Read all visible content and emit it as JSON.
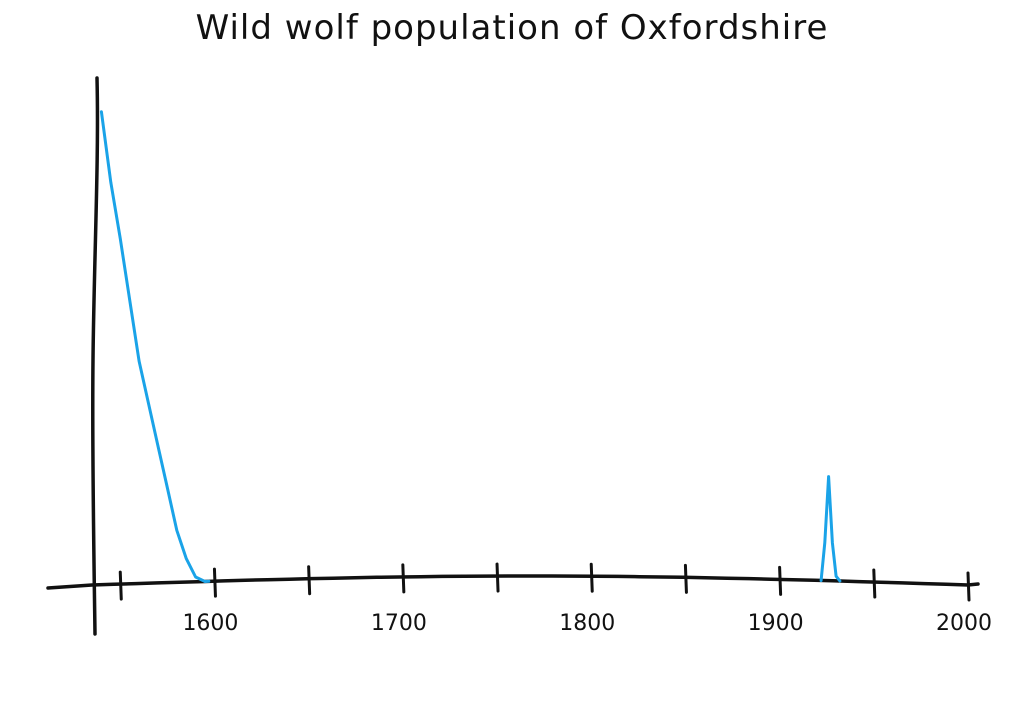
{
  "chart_data": {
    "type": "line",
    "title": "Wild wolf population of Oxfordshire",
    "xlabel": "",
    "ylabel": "",
    "xlim": [
      1535,
      2000
    ],
    "ylim": [
      0,
      100
    ],
    "x_ticks": [
      1550,
      1600,
      1650,
      1700,
      1750,
      1800,
      1850,
      1900,
      1950,
      2000
    ],
    "x_tick_labels": [
      {
        "x": 1600,
        "label": "1600"
      },
      {
        "x": 1700,
        "label": "1700"
      },
      {
        "x": 1800,
        "label": "1800"
      },
      {
        "x": 1900,
        "label": "1900"
      },
      {
        "x": 2000,
        "label": "2000"
      }
    ],
    "grid": false,
    "series": [
      {
        "color": "#1aa3e8",
        "segments": [
          {
            "x": [
              1540,
              1545,
              1550,
              1555,
              1560,
              1565,
              1570,
              1575,
              1580,
              1585,
              1590,
              1595,
              1597
            ],
            "y": [
              100,
              85,
              73,
              60,
              47,
              38,
              29,
              20,
              11,
              5,
              1,
              0,
              0
            ]
          },
          {
            "x": [
              1922,
              1924,
              1926,
              1928,
              1930,
              1932
            ],
            "y": [
              0,
              8,
              22,
              8,
              1,
              0
            ]
          }
        ]
      }
    ],
    "colors": {
      "axis": "#111111",
      "line": "#1aa3e8"
    }
  }
}
